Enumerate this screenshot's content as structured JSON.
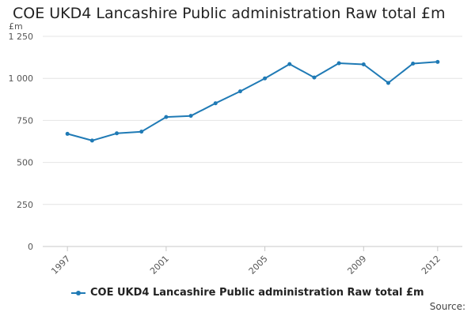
{
  "chart_data": {
    "type": "line",
    "title": "COE UKD4 Lancashire Public administration Raw total £m",
    "unit_label": "£m",
    "xlabel": "",
    "ylabel": "",
    "x": [
      1997,
      1998,
      1999,
      2000,
      2001,
      2002,
      2003,
      2004,
      2005,
      2006,
      2007,
      2008,
      2009,
      2010,
      2011,
      2012
    ],
    "x_tick_labels": [
      "1997",
      "2001",
      "2005",
      "2009",
      "2012"
    ],
    "y_tick_labels": [
      "0",
      "250",
      "500",
      "750",
      "1 000",
      "1 250"
    ],
    "ylim": [
      0,
      1250
    ],
    "grid": true,
    "series": [
      {
        "name": "COE UKD4 Lancashire Public administration Raw total £m",
        "color": "#1f7ab5",
        "values": [
          670,
          630,
          673,
          683,
          770,
          777,
          852,
          923,
          1000,
          1085,
          1005,
          1090,
          1083,
          973,
          1088,
          1098
        ]
      }
    ],
    "legend_position": "bottom",
    "source_label": "Source:"
  }
}
